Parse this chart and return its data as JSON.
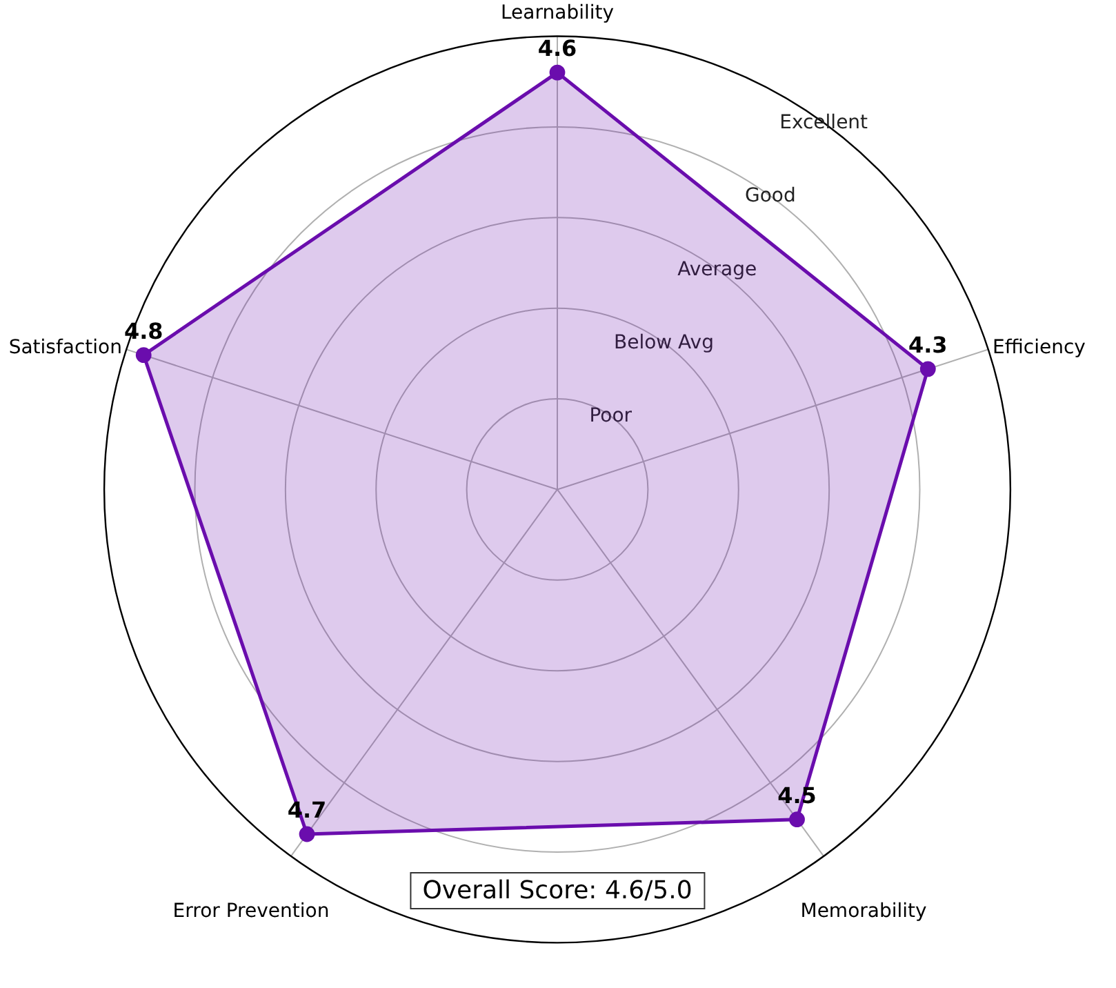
{
  "chart_data": {
    "type": "radar",
    "categories": [
      "Learnability",
      "Efficiency",
      "Memorability",
      "Error Prevention",
      "Satisfaction"
    ],
    "series": [
      {
        "color": "#6a0dad",
        "values": [
          4.6,
          4.3,
          4.5,
          4.7,
          4.8
        ]
      }
    ],
    "ylim": [
      0,
      5
    ],
    "yticks": [
      {
        "value": 1,
        "label": "Poor"
      },
      {
        "value": 2,
        "label": "Below Avg"
      },
      {
        "value": 3,
        "label": "Average"
      },
      {
        "value": 4,
        "label": "Good"
      },
      {
        "value": 5,
        "label": "Excellent"
      }
    ],
    "grid": true,
    "marker": "circle",
    "data_labels": true,
    "annotations": [
      "Overall Score: 4.6/5.0"
    ]
  }
}
